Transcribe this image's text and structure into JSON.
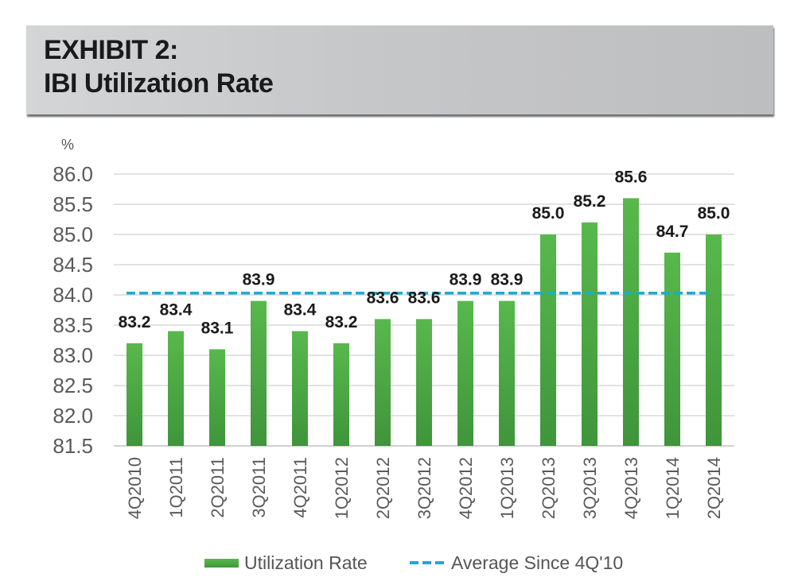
{
  "header": {
    "line1": "EXHIBIT 2:",
    "line2": "IBI Utilization Rate"
  },
  "colors": {
    "bar_top": "#58b84c",
    "bar_bottom": "#3f953b",
    "average_line": "#19acd4",
    "gridline": "#d9d9d9",
    "tick_label": "#5a5a5a",
    "data_label": "#1a1a1a"
  },
  "chart_data": {
    "type": "bar",
    "title": "EXHIBIT 2: IBI Utilization Rate",
    "ylabel": "%",
    "xlabel": "",
    "ylim": [
      81.5,
      86.0
    ],
    "yticks": [
      81.5,
      82.0,
      82.5,
      83.0,
      83.5,
      84.0,
      84.5,
      85.0,
      85.5,
      86.0
    ],
    "ytick_labels": [
      "81.5",
      "82.0",
      "82.5",
      "83.0",
      "83.5",
      "84.0",
      "84.5",
      "85.0",
      "85.5",
      "86.0"
    ],
    "grid": true,
    "categories": [
      "4Q2010",
      "1Q2011",
      "2Q2011",
      "3Q2011",
      "4Q2011",
      "1Q2012",
      "2Q2012",
      "3Q2012",
      "4Q2012",
      "1Q2013",
      "2Q2013",
      "3Q2013",
      "4Q2013",
      "1Q2014",
      "2Q2014"
    ],
    "series": [
      {
        "name": "Utilization Rate",
        "type": "bar",
        "values": [
          83.2,
          83.4,
          83.1,
          83.9,
          83.4,
          83.2,
          83.6,
          83.6,
          83.9,
          83.9,
          85.0,
          85.2,
          85.6,
          84.7,
          85.0
        ],
        "data_labels": [
          "83.2",
          "83.4",
          "83.1",
          "83.9",
          "83.4",
          "83.2",
          "83.6",
          "83.6",
          "83.9",
          "83.9",
          "85.0",
          "85.2",
          "85.6",
          "84.7",
          "85.0"
        ]
      },
      {
        "name": "Average Since 4Q'10",
        "type": "line",
        "style": "dashed",
        "value": 84.03
      }
    ],
    "legend": {
      "position": "bottom",
      "entries": [
        "Utilization Rate",
        "Average Since 4Q'10"
      ]
    }
  }
}
